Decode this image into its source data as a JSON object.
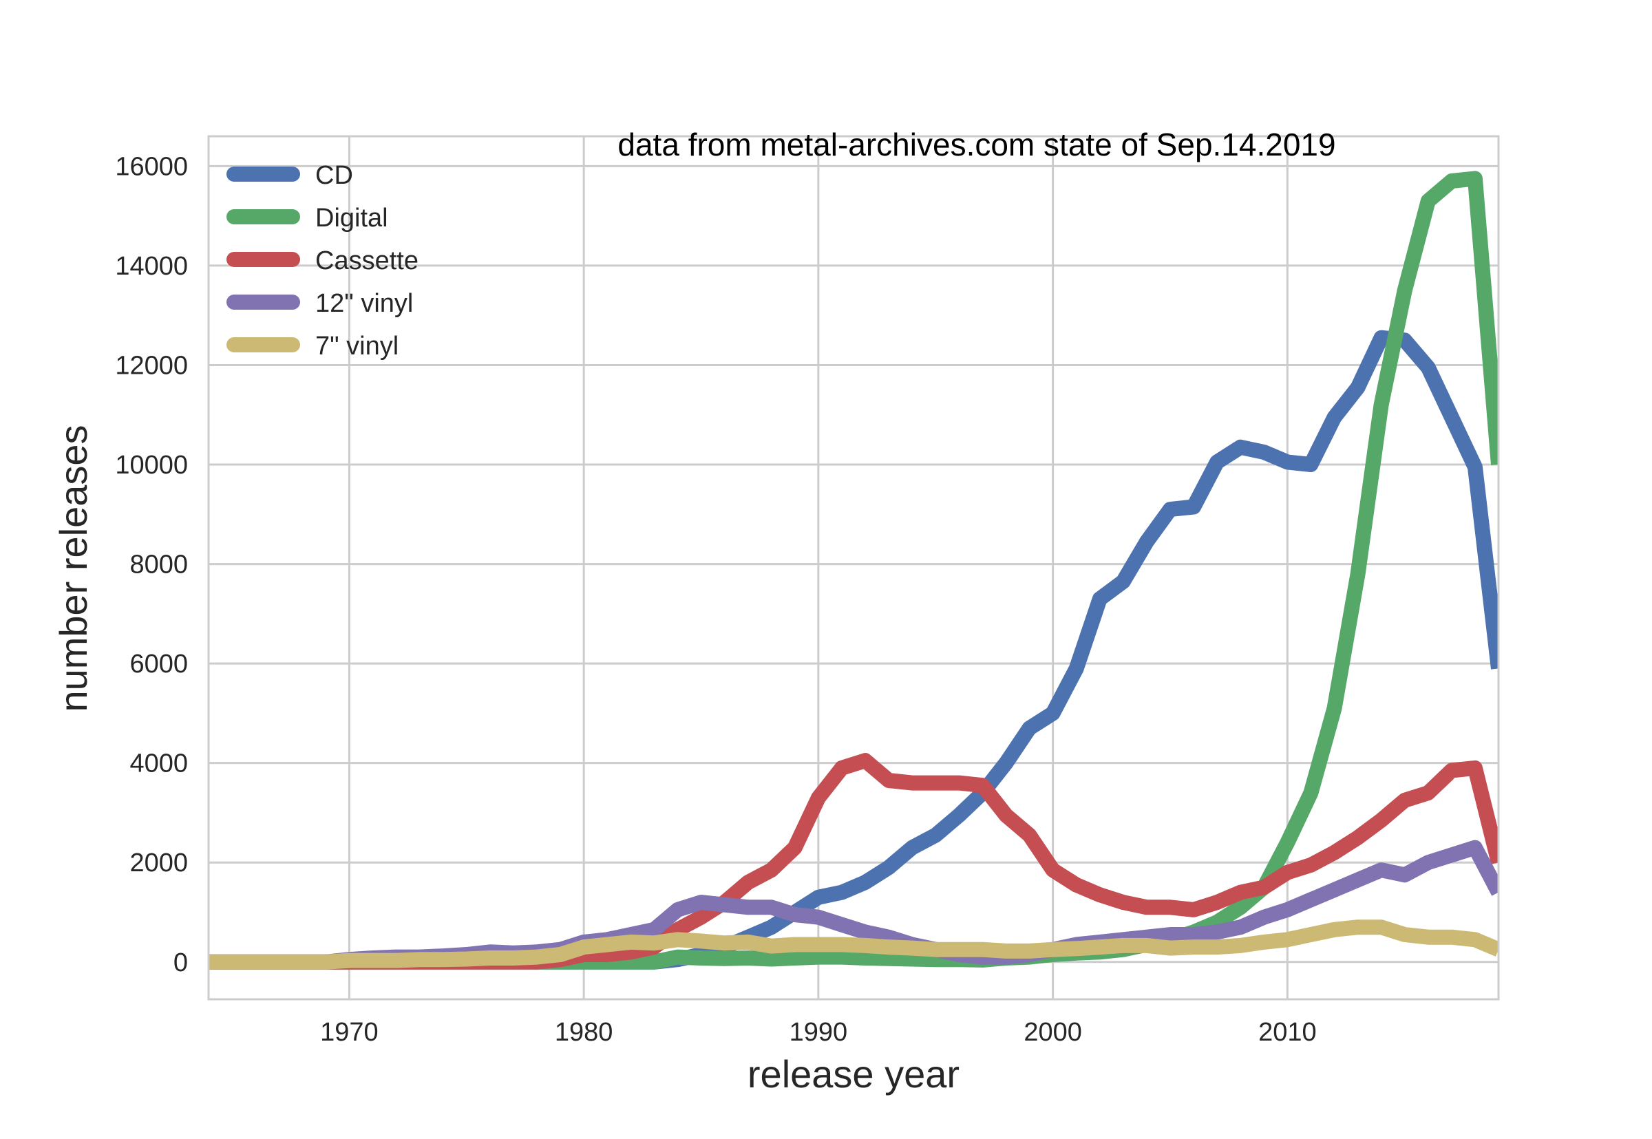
{
  "chart_data": {
    "type": "line",
    "title": "",
    "annotation": "data from metal-archives.com state of Sep.14.2019",
    "xlabel": "release year",
    "ylabel": "number releases",
    "xlim": [
      1964,
      2019
    ],
    "ylim": [
      -750,
      16600
    ],
    "xticks": [
      1970,
      1980,
      1990,
      2000,
      2010
    ],
    "yticks": [
      0,
      2000,
      4000,
      6000,
      8000,
      10000,
      12000,
      14000,
      16000
    ],
    "grid": true,
    "legend_position": "upper-left",
    "x": [
      1964,
      1965,
      1966,
      1967,
      1968,
      1969,
      1970,
      1971,
      1972,
      1973,
      1974,
      1975,
      1976,
      1977,
      1978,
      1979,
      1980,
      1981,
      1982,
      1983,
      1984,
      1985,
      1986,
      1987,
      1988,
      1989,
      1990,
      1991,
      1992,
      1993,
      1994,
      1995,
      1996,
      1997,
      1998,
      1999,
      2000,
      2001,
      2002,
      2003,
      2004,
      2005,
      2006,
      2007,
      2008,
      2009,
      2010,
      2011,
      2012,
      2013,
      2014,
      2015,
      2016,
      2017,
      2018,
      2019
    ],
    "series": [
      {
        "name": "CD",
        "color": "#4c72b0",
        "values": [
          0,
          0,
          0,
          0,
          0,
          0,
          0,
          0,
          0,
          0,
          0,
          0,
          0,
          0,
          0,
          0,
          0,
          0,
          0,
          0,
          50,
          150,
          300,
          500,
          700,
          1000,
          1300,
          1400,
          1600,
          1900,
          2300,
          2550,
          2950,
          3400,
          4000,
          4700,
          5000,
          5900,
          7300,
          7650,
          8450,
          9100,
          9150,
          10050,
          10350,
          10250,
          10050,
          10000,
          10950,
          11550,
          12550,
          12500,
          11950,
          10950,
          9950,
          5900
        ]
      },
      {
        "name": "Digital",
        "color": "#55a868",
        "values": [
          0,
          0,
          0,
          0,
          0,
          0,
          0,
          0,
          0,
          0,
          0,
          0,
          0,
          0,
          0,
          0,
          0,
          0,
          0,
          0,
          100,
          80,
          70,
          80,
          60,
          80,
          100,
          100,
          80,
          70,
          60,
          50,
          50,
          40,
          80,
          100,
          150,
          180,
          200,
          250,
          350,
          450,
          600,
          800,
          1100,
          1500,
          2400,
          3400,
          5100,
          7800,
          11200,
          13500,
          15300,
          15700,
          15750,
          10000
        ]
      },
      {
        "name": "Cassette",
        "color": "#c44e52",
        "values": [
          0,
          0,
          0,
          0,
          0,
          0,
          0,
          0,
          0,
          0,
          0,
          0,
          0,
          0,
          0,
          50,
          150,
          150,
          200,
          300,
          650,
          900,
          1200,
          1600,
          1850,
          2300,
          3300,
          3900,
          4050,
          3650,
          3600,
          3600,
          3600,
          3550,
          2950,
          2550,
          1850,
          1550,
          1350,
          1200,
          1100,
          1100,
          1050,
          1200,
          1400,
          1500,
          1800,
          1950,
          2200,
          2500,
          2850,
          3250,
          3400,
          3850,
          3900,
          2000
        ]
      },
      {
        "name": "12\" vinyl",
        "color": "#8172b2",
        "values": [
          0,
          0,
          0,
          0,
          0,
          0,
          50,
          80,
          100,
          100,
          120,
          150,
          200,
          180,
          200,
          250,
          400,
          450,
          550,
          650,
          1050,
          1200,
          1150,
          1100,
          1100,
          950,
          900,
          750,
          600,
          500,
          350,
          250,
          150,
          100,
          100,
          150,
          250,
          350,
          400,
          450,
          500,
          550,
          550,
          600,
          700,
          900,
          1050,
          1250,
          1450,
          1650,
          1850,
          1750,
          2000,
          2150,
          2300,
          1400
        ]
      },
      {
        "name": "7\" vinyl",
        "color": "#ccb974",
        "values": [
          0,
          0,
          0,
          0,
          0,
          0,
          30,
          30,
          30,
          50,
          50,
          60,
          80,
          80,
          100,
          150,
          300,
          350,
          400,
          380,
          450,
          420,
          380,
          400,
          320,
          350,
          350,
          350,
          330,
          300,
          280,
          250,
          250,
          250,
          220,
          220,
          250,
          270,
          300,
          330,
          330,
          280,
          300,
          300,
          330,
          400,
          450,
          550,
          650,
          700,
          700,
          550,
          500,
          500,
          450,
          250
        ]
      }
    ]
  }
}
